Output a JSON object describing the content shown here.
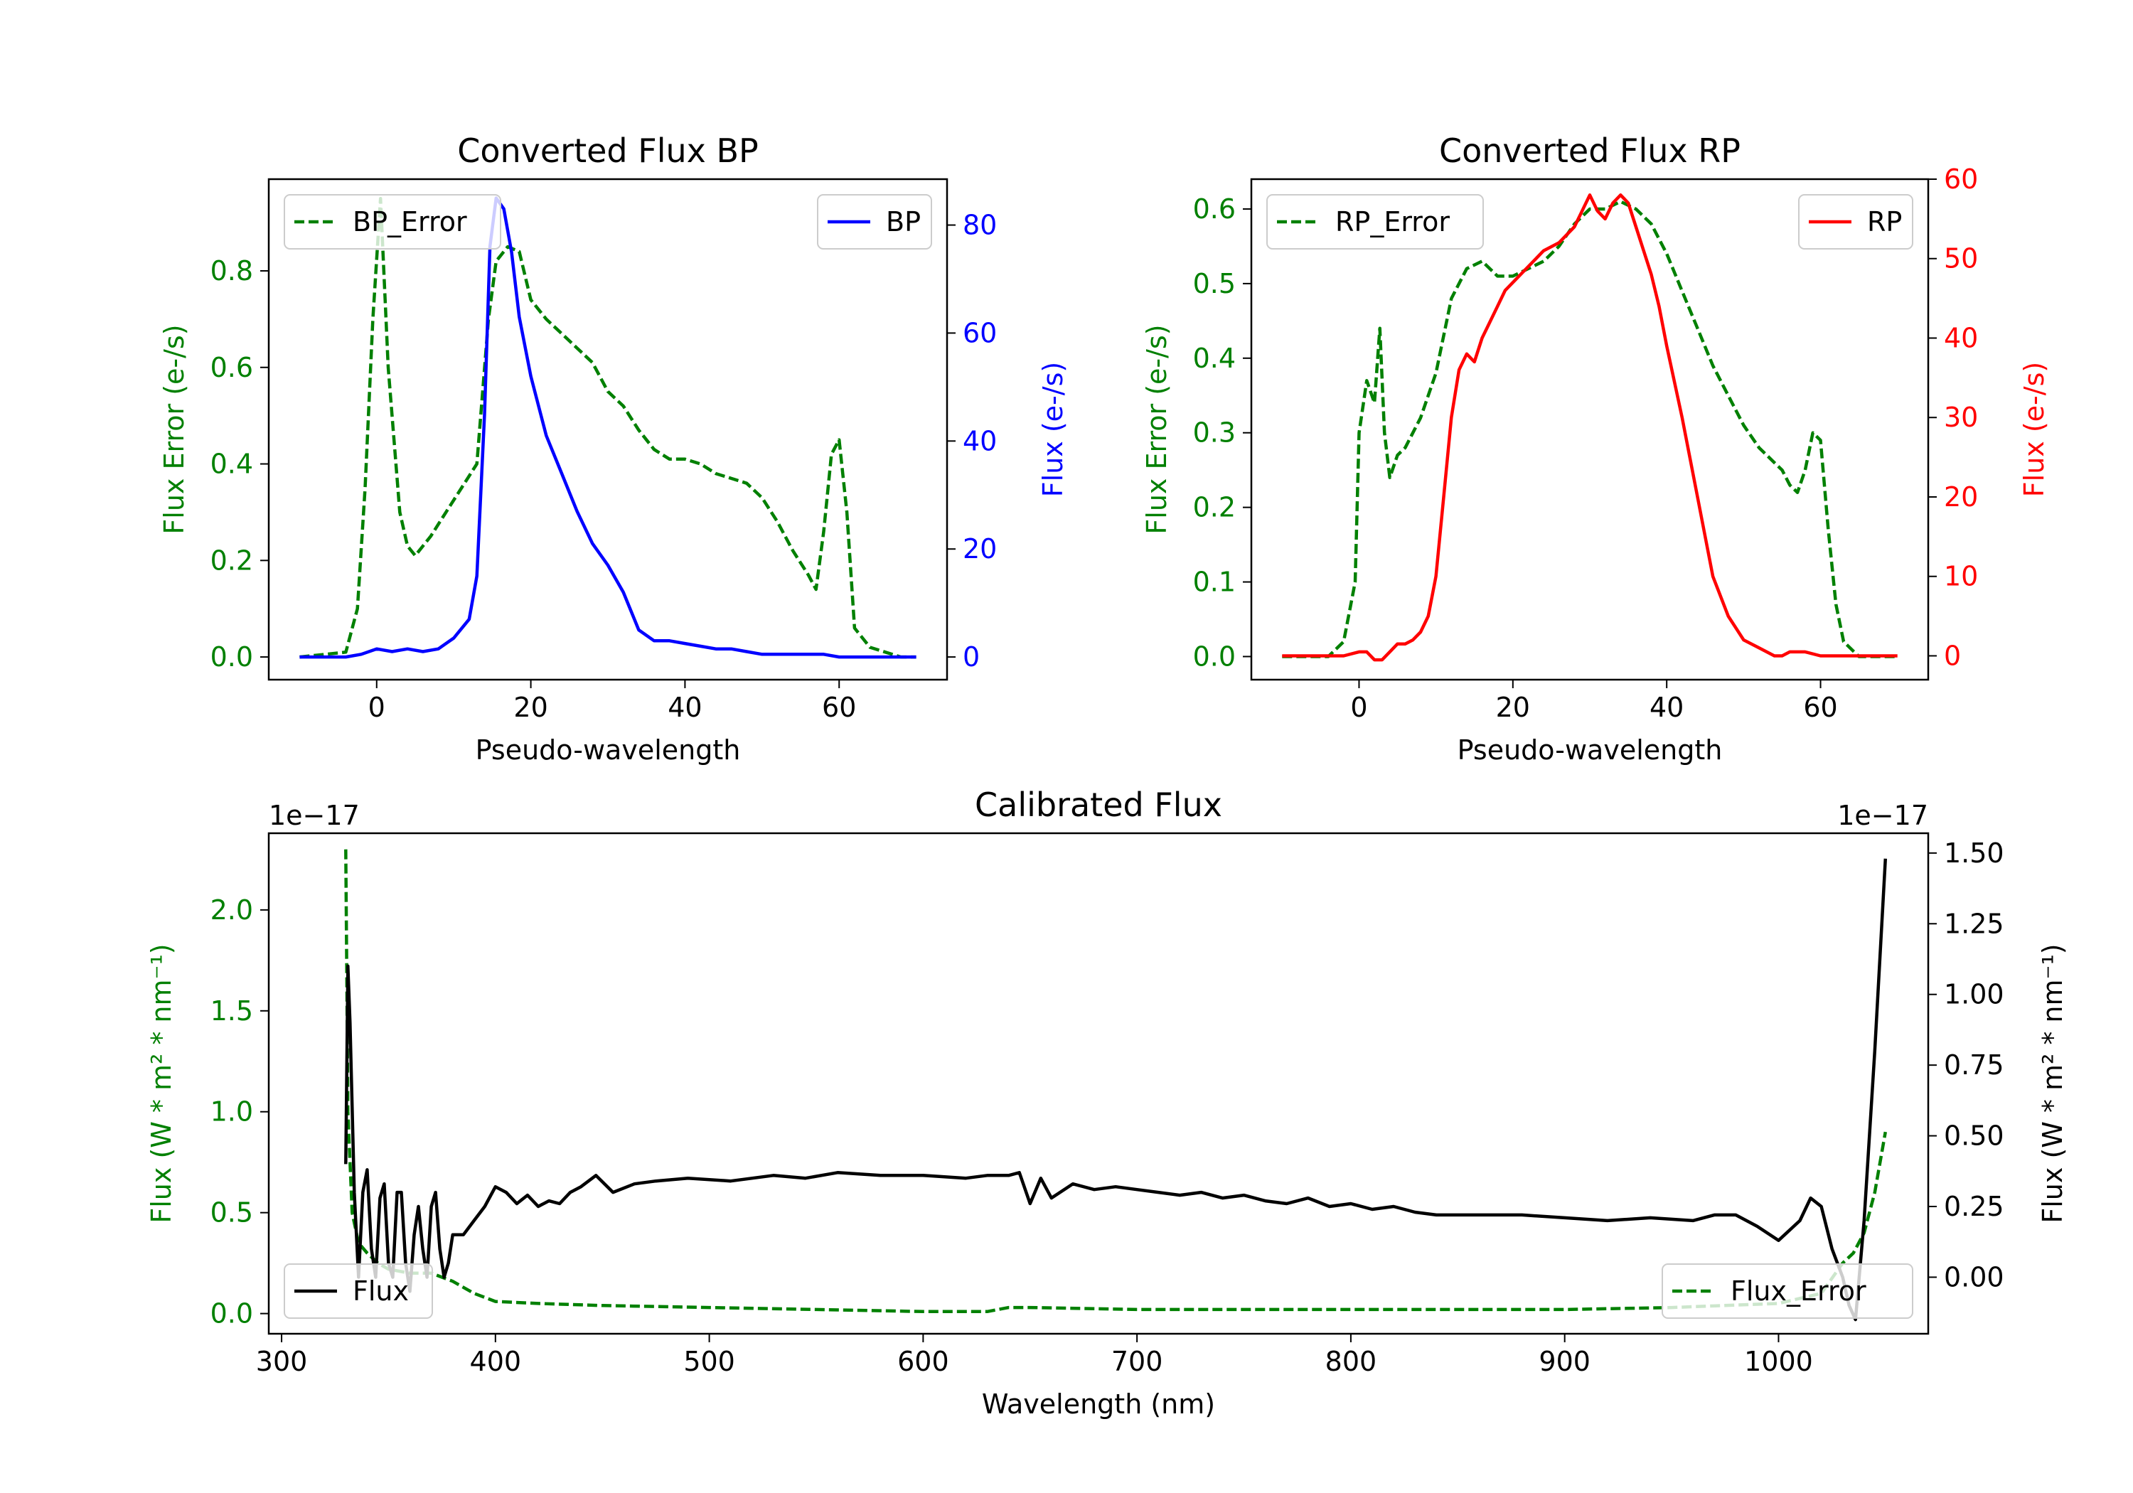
{
  "chart_data": [
    {
      "id": "bp",
      "type": "line",
      "title": "Converted Flux BP",
      "xlabel": "Pseudo-wavelength",
      "xlim": [
        -14,
        74
      ],
      "xticks": [
        0,
        20,
        40,
        60
      ],
      "left_axis": {
        "label": "Flux Error (e-/s)",
        "color": "#008000",
        "ylim": [
          -0.047,
          0.99
        ],
        "ticks": [
          0.0,
          0.2,
          0.4,
          0.6,
          0.8
        ],
        "tick_labels": [
          "0.0",
          "0.2",
          "0.4",
          "0.6",
          "0.8"
        ]
      },
      "right_axis": {
        "label": "Flux (e-/s)",
        "color": "#0000ff",
        "ylim": [
          -4.2,
          88.5
        ],
        "ticks": [
          0,
          20,
          40,
          60,
          80
        ],
        "tick_labels": [
          "0",
          "20",
          "40",
          "60",
          "80"
        ]
      },
      "legends": [
        {
          "text": "BP_Error",
          "style": "dashed",
          "color": "#008000",
          "loc": "upper left"
        },
        {
          "text": "BP",
          "style": "solid",
          "color": "#0000ff",
          "loc": "upper right"
        }
      ],
      "series": [
        {
          "name": "BP_Error",
          "axis": "left",
          "style": "dashed",
          "color": "#008000",
          "x": [
            -10,
            -4,
            -2.5,
            -1.5,
            -0.5,
            0.5,
            1.5,
            3,
            4,
            5,
            7,
            9,
            11,
            13,
            14.5,
            15.5,
            17,
            18.5,
            20,
            22,
            24,
            26,
            28,
            30,
            32,
            34,
            36,
            38,
            40,
            42,
            44,
            46,
            48,
            50,
            52,
            54,
            56,
            57,
            58,
            59,
            60,
            61,
            62,
            64,
            66,
            68,
            70
          ],
          "y": [
            0,
            0.01,
            0.1,
            0.35,
            0.7,
            0.95,
            0.6,
            0.3,
            0.23,
            0.21,
            0.25,
            0.3,
            0.35,
            0.4,
            0.7,
            0.82,
            0.85,
            0.84,
            0.74,
            0.7,
            0.67,
            0.64,
            0.61,
            0.55,
            0.52,
            0.47,
            0.43,
            0.41,
            0.41,
            0.4,
            0.38,
            0.37,
            0.36,
            0.33,
            0.28,
            0.22,
            0.17,
            0.14,
            0.26,
            0.42,
            0.45,
            0.3,
            0.06,
            0.02,
            0.01,
            0,
            0
          ]
        },
        {
          "name": "BP",
          "axis": "right",
          "style": "solid",
          "color": "#0000ff",
          "x": [
            -10,
            -4,
            -2,
            0,
            2,
            4,
            6,
            8,
            10,
            12,
            13,
            14,
            14.7,
            15.5,
            16.5,
            17.5,
            18.5,
            20,
            22,
            24,
            26,
            28,
            30,
            32,
            34,
            36,
            38,
            40,
            42,
            44,
            46,
            48,
            50,
            52,
            54,
            56,
            58,
            60,
            62,
            64,
            66,
            68,
            70
          ],
          "y": [
            0,
            0,
            0.5,
            1.5,
            1,
            1.5,
            1,
            1.5,
            3.5,
            7,
            15,
            45,
            76,
            85,
            83,
            75,
            63,
            52,
            41,
            34,
            27,
            21,
            17,
            12,
            5,
            3,
            3,
            2.5,
            2,
            1.5,
            1.5,
            1,
            0.5,
            0.5,
            0.5,
            0.5,
            0.5,
            0,
            0,
            0,
            0,
            0,
            0
          ]
        }
      ]
    },
    {
      "id": "rp",
      "type": "line",
      "title": "Converted Flux RP",
      "xlabel": "Pseudo-wavelength",
      "xlim": [
        -14,
        74
      ],
      "xticks": [
        0,
        20,
        40,
        60
      ],
      "left_axis": {
        "label": "Flux Error (e-/s)",
        "color": "#008000",
        "ylim": [
          -0.031,
          0.64
        ],
        "ticks": [
          0.0,
          0.1,
          0.2,
          0.3,
          0.4,
          0.5,
          0.6
        ],
        "tick_labels": [
          "0.0",
          "0.1",
          "0.2",
          "0.3",
          "0.4",
          "0.5",
          "0.6"
        ]
      },
      "right_axis": {
        "label": "Flux (e-/s)",
        "color": "#ff0000",
        "ylim": [
          -3.0,
          60.0
        ],
        "ticks": [
          0,
          10,
          20,
          30,
          40,
          50,
          60
        ],
        "tick_labels": [
          "0",
          "10",
          "20",
          "30",
          "40",
          "50",
          "60"
        ]
      },
      "legends": [
        {
          "text": "RP_Error",
          "style": "dashed",
          "color": "#008000",
          "loc": "upper left"
        },
        {
          "text": "RP",
          "style": "solid",
          "color": "#ff0000",
          "loc": "upper right"
        }
      ],
      "series": [
        {
          "name": "RP_Error",
          "axis": "left",
          "style": "dashed",
          "color": "#008000",
          "x": [
            -10,
            -4,
            -2,
            -0.5,
            0,
            1,
            2,
            2.7,
            3.3,
            4,
            5,
            6,
            7,
            8,
            10,
            12,
            14,
            16,
            18,
            20,
            22,
            24,
            26,
            28,
            30,
            32,
            34,
            36,
            38,
            40,
            42,
            44,
            46,
            48,
            50,
            52,
            54,
            55,
            56,
            57,
            58,
            59,
            60,
            61,
            62,
            63,
            65,
            70
          ],
          "y": [
            0,
            0,
            0.02,
            0.1,
            0.3,
            0.37,
            0.34,
            0.44,
            0.3,
            0.24,
            0.27,
            0.28,
            0.3,
            0.32,
            0.38,
            0.48,
            0.52,
            0.53,
            0.51,
            0.51,
            0.52,
            0.53,
            0.55,
            0.58,
            0.6,
            0.6,
            0.61,
            0.6,
            0.58,
            0.54,
            0.49,
            0.44,
            0.39,
            0.35,
            0.31,
            0.28,
            0.26,
            0.25,
            0.23,
            0.22,
            0.25,
            0.3,
            0.29,
            0.17,
            0.07,
            0.02,
            0,
            0
          ]
        },
        {
          "name": "RP",
          "axis": "right",
          "style": "solid",
          "color": "#ff0000",
          "x": [
            -10,
            -5,
            -2,
            0,
            1,
            2,
            3,
            4,
            5,
            6,
            7,
            8,
            9,
            10,
            11,
            12,
            13,
            14,
            15,
            16,
            17,
            18,
            19,
            20,
            22,
            24,
            26,
            28,
            29,
            30,
            31,
            32,
            33,
            34,
            35,
            36,
            37,
            38,
            39,
            40,
            42,
            44,
            46,
            48,
            50,
            52,
            53,
            54,
            55,
            56,
            58,
            60,
            62,
            65,
            70
          ],
          "y": [
            0,
            0,
            0,
            0.5,
            0.5,
            -0.5,
            -0.5,
            0.5,
            1.5,
            1.5,
            2,
            3,
            5,
            10,
            20,
            30,
            36,
            38,
            37,
            40,
            42,
            44,
            46,
            47,
            49,
            51,
            52,
            54,
            56,
            58,
            56,
            55,
            57,
            58,
            57,
            54,
            51,
            48,
            44,
            39,
            30,
            20,
            10,
            5,
            2,
            1,
            0.5,
            0,
            0,
            0.5,
            0.5,
            0,
            0,
            0,
            0
          ]
        }
      ]
    },
    {
      "id": "cal",
      "type": "line",
      "title": "Calibrated Flux",
      "xlabel": "Wavelength (nm)",
      "xlim": [
        294,
        1070
      ],
      "xticks": [
        300,
        400,
        500,
        600,
        700,
        800,
        900,
        1000
      ],
      "left_axis": {
        "label": "Flux (W * m² * nm⁻¹)",
        "color": "#008000",
        "offset_text": "1e−17",
        "ylim": [
          -0.1,
          2.38
        ],
        "ticks": [
          0.0,
          0.5,
          1.0,
          1.5,
          2.0
        ],
        "tick_labels": [
          "0.0",
          "0.5",
          "1.0",
          "1.5",
          "2.0"
        ]
      },
      "right_axis": {
        "label": "Flux (W * m² * nm⁻¹)",
        "color": "#000000",
        "offset_text": "1e−17",
        "ylim": [
          -0.2,
          1.57
        ],
        "ticks": [
          0.0,
          0.25,
          0.5,
          0.75,
          1.0,
          1.25,
          1.5
        ],
        "tick_labels": [
          "0.00",
          "0.25",
          "0.50",
          "0.75",
          "1.00",
          "1.25",
          "1.50"
        ]
      },
      "legends": [
        {
          "text": "Flux",
          "style": "solid",
          "color": "#000000",
          "loc": "lower left"
        },
        {
          "text": "Flux_Error",
          "style": "dashed",
          "color": "#008000",
          "loc": "lower right"
        }
      ],
      "series": [
        {
          "name": "Flux_Error",
          "axis": "left",
          "style": "dashed",
          "color": "#008000",
          "x": [
            330,
            331,
            333,
            336,
            340,
            345,
            350,
            360,
            370,
            380,
            390,
            400,
            420,
            450,
            500,
            550,
            600,
            630,
            640,
            650,
            700,
            750,
            800,
            850,
            900,
            950,
            1000,
            1020,
            1030,
            1035,
            1040,
            1045,
            1050
          ],
          "y": [
            2.3,
            1.0,
            0.5,
            0.35,
            0.3,
            0.25,
            0.22,
            0.2,
            0.2,
            0.16,
            0.1,
            0.06,
            0.05,
            0.04,
            0.03,
            0.02,
            0.01,
            0.01,
            0.03,
            0.03,
            0.02,
            0.02,
            0.02,
            0.02,
            0.02,
            0.03,
            0.05,
            0.1,
            0.25,
            0.3,
            0.4,
            0.6,
            0.9
          ]
        },
        {
          "name": "Flux",
          "axis": "right",
          "style": "solid",
          "color": "#000000",
          "x": [
            330,
            331,
            332,
            334,
            336,
            338,
            340,
            342,
            344,
            346,
            348,
            350,
            352,
            354,
            356,
            358,
            360,
            362,
            364,
            366,
            368,
            370,
            372,
            374,
            376,
            378,
            380,
            385,
            390,
            395,
            400,
            405,
            410,
            415,
            420,
            425,
            430,
            435,
            440,
            447,
            455,
            465,
            475,
            490,
            510,
            530,
            545,
            560,
            580,
            600,
            620,
            630,
            640,
            645,
            650,
            655,
            660,
            670,
            680,
            690,
            700,
            710,
            720,
            730,
            740,
            750,
            760,
            770,
            780,
            790,
            800,
            810,
            820,
            830,
            840,
            860,
            880,
            900,
            920,
            940,
            960,
            970,
            980,
            990,
            1000,
            1010,
            1015,
            1020,
            1025,
            1030,
            1033,
            1036,
            1040,
            1045,
            1050
          ],
          "y": [
            0.4,
            1.1,
            0.9,
            0.3,
            0.0,
            0.3,
            0.38,
            0.1,
            0.0,
            0.28,
            0.33,
            0.05,
            0.0,
            0.3,
            0.3,
            0.05,
            -0.05,
            0.15,
            0.25,
            0.1,
            0.0,
            0.25,
            0.3,
            0.1,
            0.0,
            0.05,
            0.15,
            0.15,
            0.2,
            0.25,
            0.32,
            0.3,
            0.26,
            0.29,
            0.25,
            0.27,
            0.26,
            0.3,
            0.32,
            0.36,
            0.3,
            0.33,
            0.34,
            0.35,
            0.34,
            0.36,
            0.35,
            0.37,
            0.36,
            0.36,
            0.35,
            0.36,
            0.36,
            0.37,
            0.26,
            0.35,
            0.28,
            0.33,
            0.31,
            0.32,
            0.31,
            0.3,
            0.29,
            0.3,
            0.28,
            0.29,
            0.27,
            0.26,
            0.28,
            0.25,
            0.26,
            0.24,
            0.25,
            0.23,
            0.22,
            0.22,
            0.22,
            0.21,
            0.2,
            0.21,
            0.2,
            0.22,
            0.22,
            0.18,
            0.13,
            0.2,
            0.28,
            0.25,
            0.1,
            0.0,
            -0.1,
            -0.15,
            0.2,
            0.8,
            1.48
          ]
        }
      ]
    }
  ]
}
